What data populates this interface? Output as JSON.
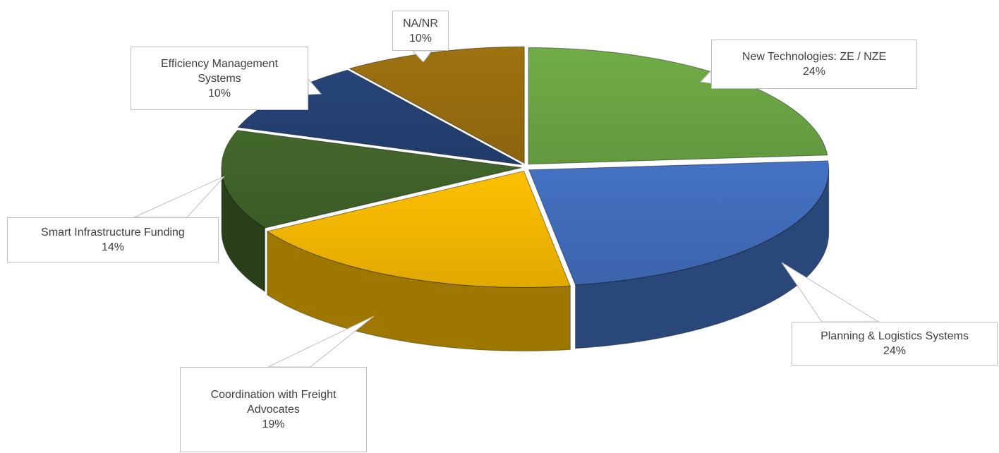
{
  "chart_data": {
    "type": "pie",
    "categories": [
      "New Technologies: ZE / NZE",
      "Planning & Logistics Systems",
      "Coordination with Freight Advocates",
      "Smart Infrastructure Funding",
      "Efficiency Management Systems",
      "NA/NR"
    ],
    "values": [
      24,
      24,
      19,
      14,
      10,
      10
    ],
    "value_labels": [
      "24%",
      "24%",
      "19%",
      "14%",
      "10%",
      "10%"
    ],
    "colors": [
      "#70ad47",
      "#4472c4",
      "#ffc000",
      "#43682b",
      "#264478",
      "#9e7210"
    ],
    "three_d": true
  }
}
